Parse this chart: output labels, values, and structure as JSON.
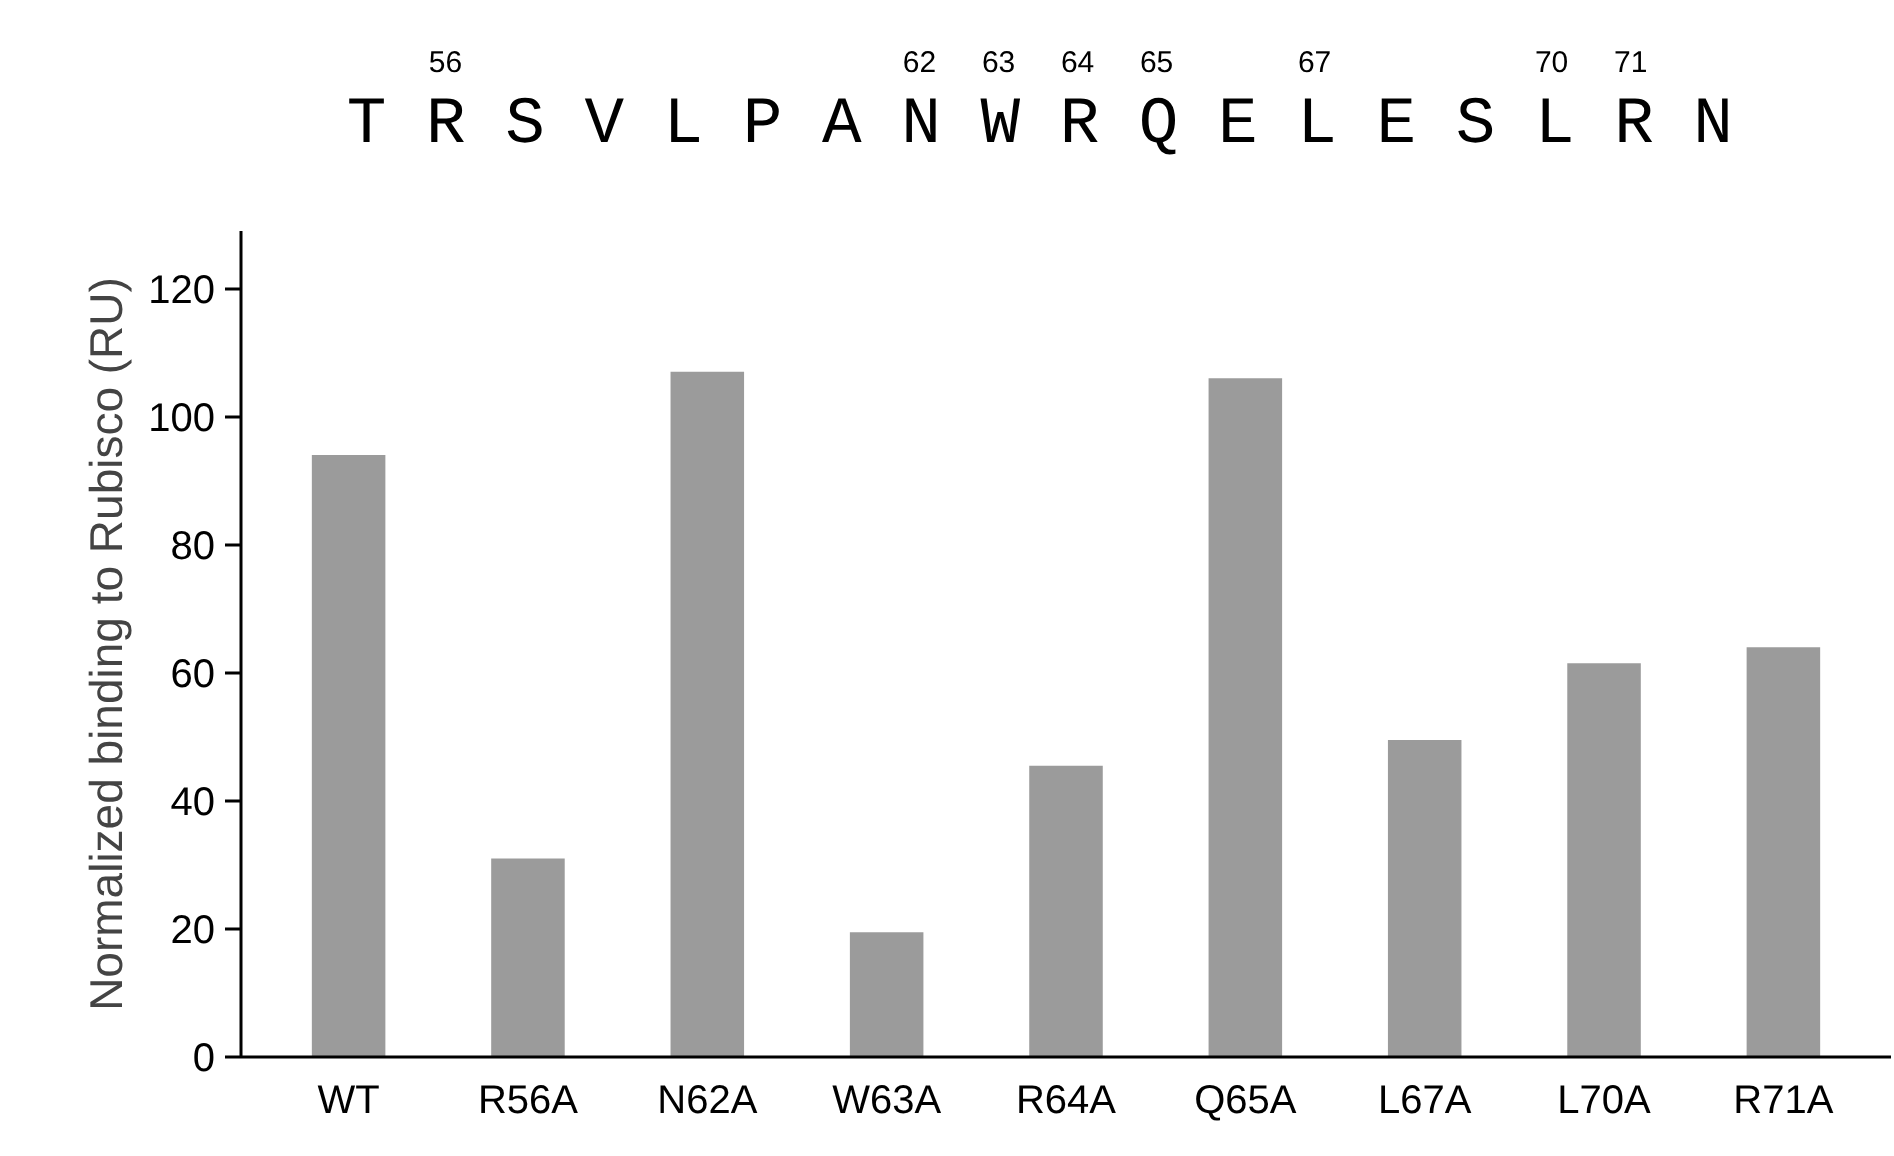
{
  "chart_data": {
    "type": "bar",
    "ylabel": "Normalized binding to Rubisco (RU)",
    "categories": [
      "WT",
      "R56A",
      "N62A",
      "W63A",
      "R64A",
      "Q65A",
      "L67A",
      "L70A",
      "R71A"
    ],
    "values": [
      94,
      31,
      107,
      19.5,
      45.5,
      106,
      49.5,
      61.5,
      64
    ],
    "color": "#9b9b9b",
    "ylim": [
      0,
      129
    ],
    "yticks": [
      0,
      20,
      40,
      60,
      80,
      100,
      120
    ],
    "grid": false,
    "annotations": [
      "T R S V L P A N W R Q E L E S L R N",
      "56",
      "62",
      "63",
      "64",
      "65",
      "67",
      "70",
      "71"
    ]
  }
}
